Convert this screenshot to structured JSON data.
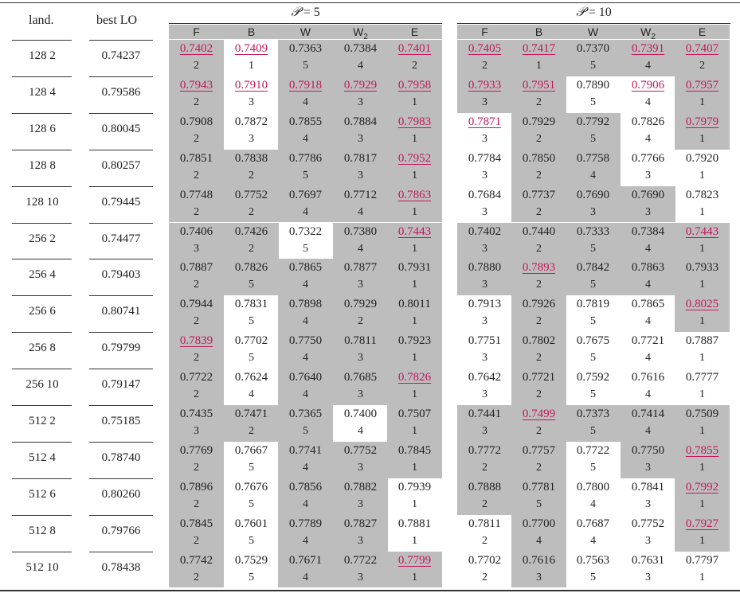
{
  "columns": {
    "landmarks": "land.",
    "best_lo": "best LO",
    "groups": [
      {
        "label_prefix": "𝒫",
        "label_eq": "= 5"
      },
      {
        "label_prefix": "𝒫",
        "label_eq": "= 10"
      }
    ],
    "methods": [
      "F",
      "B",
      "W",
      "W",
      "E"
    ],
    "w2_subscript": "2"
  },
  "rows": [
    {
      "land": "128 2",
      "best": "0.74237",
      "p5": [
        [
          "0.7402",
          "2",
          1,
          1
        ],
        [
          "0.7409",
          "1",
          1,
          0
        ],
        [
          "0.7363",
          "5",
          0,
          1
        ],
        [
          "0.7384",
          "4",
          0,
          1
        ],
        [
          "0.7401",
          "2",
          1,
          1
        ]
      ],
      "p10": [
        [
          "0.7405",
          "2",
          1,
          1
        ],
        [
          "0.7417",
          "1",
          1,
          1
        ],
        [
          "0.7370",
          "5",
          0,
          1
        ],
        [
          "0.7391",
          "4",
          1,
          1
        ],
        [
          "0.7407",
          "2",
          1,
          1
        ]
      ]
    },
    {
      "land": "128 4",
      "best": "0.79586",
      "p5": [
        [
          "0.7943",
          "2",
          1,
          1
        ],
        [
          "0.7910",
          "3",
          1,
          0
        ],
        [
          "0.7918",
          "4",
          1,
          1
        ],
        [
          "0.7929",
          "3",
          1,
          1
        ],
        [
          "0.7958",
          "1",
          1,
          1
        ]
      ],
      "p10": [
        [
          "0.7933",
          "3",
          1,
          1
        ],
        [
          "0.7951",
          "2",
          1,
          1
        ],
        [
          "0.7890",
          "5",
          0,
          0
        ],
        [
          "0.7906",
          "4",
          1,
          0
        ],
        [
          "0.7957",
          "1",
          1,
          1
        ]
      ]
    },
    {
      "land": "128 6",
      "best": "0.80045",
      "p5": [
        [
          "0.7908",
          "2",
          0,
          1
        ],
        [
          "0.7872",
          "3",
          0,
          0
        ],
        [
          "0.7855",
          "4",
          0,
          1
        ],
        [
          "0.7884",
          "3",
          0,
          1
        ],
        [
          "0.7983",
          "1",
          1,
          1
        ]
      ],
      "p10": [
        [
          "0.7871",
          "3",
          1,
          0
        ],
        [
          "0.7929",
          "2",
          0,
          1
        ],
        [
          "0.7792",
          "5",
          0,
          1
        ],
        [
          "0.7826",
          "4",
          0,
          0
        ],
        [
          "0.7979",
          "1",
          1,
          1
        ]
      ]
    },
    {
      "land": "128 8",
      "best": "0.80257",
      "p5": [
        [
          "0.7851",
          "2",
          0,
          1
        ],
        [
          "0.7838",
          "2",
          0,
          1
        ],
        [
          "0.7786",
          "5",
          0,
          1
        ],
        [
          "0.7817",
          "3",
          0,
          1
        ],
        [
          "0.7952",
          "1",
          1,
          1
        ]
      ],
      "p10": [
        [
          "0.7784",
          "3",
          0,
          0
        ],
        [
          "0.7850",
          "2",
          0,
          1
        ],
        [
          "0.7758",
          "4",
          0,
          1
        ],
        [
          "0.7766",
          "3",
          0,
          0
        ],
        [
          "0.7920",
          "1",
          0,
          0
        ]
      ]
    },
    {
      "land": "128 10",
      "best": "0.79445",
      "p5": [
        [
          "0.7748",
          "2",
          0,
          1
        ],
        [
          "0.7752",
          "2",
          0,
          1
        ],
        [
          "0.7697",
          "4",
          0,
          1
        ],
        [
          "0.7712",
          "4",
          0,
          1
        ],
        [
          "0.7863",
          "1",
          1,
          1
        ]
      ],
      "p10": [
        [
          "0.7684",
          "3",
          0,
          0
        ],
        [
          "0.7737",
          "2",
          0,
          1
        ],
        [
          "0.7690",
          "3",
          0,
          1
        ],
        [
          "0.7690",
          "3",
          0,
          1
        ],
        [
          "0.7823",
          "1",
          0,
          0
        ]
      ]
    },
    {
      "land": "256 2",
      "best": "0.74477",
      "p5": [
        [
          "0.7406",
          "3",
          0,
          1
        ],
        [
          "0.7426",
          "2",
          0,
          1
        ],
        [
          "0.7322",
          "5",
          0,
          0
        ],
        [
          "0.7380",
          "4",
          0,
          1
        ],
        [
          "0.7443",
          "1",
          1,
          1
        ]
      ],
      "p10": [
        [
          "0.7402",
          "3",
          0,
          1
        ],
        [
          "0.7440",
          "2",
          0,
          1
        ],
        [
          "0.7333",
          "5",
          0,
          1
        ],
        [
          "0.7384",
          "4",
          0,
          1
        ],
        [
          "0.7443",
          "1",
          1,
          1
        ]
      ]
    },
    {
      "land": "256 4",
      "best": "0.79403",
      "p5": [
        [
          "0.7887",
          "2",
          0,
          1
        ],
        [
          "0.7826",
          "5",
          0,
          1
        ],
        [
          "0.7865",
          "4",
          0,
          1
        ],
        [
          "0.7877",
          "3",
          0,
          1
        ],
        [
          "0.7931",
          "1",
          0,
          1
        ]
      ],
      "p10": [
        [
          "0.7880",
          "3",
          0,
          1
        ],
        [
          "0.7893",
          "2",
          1,
          1
        ],
        [
          "0.7842",
          "5",
          0,
          1
        ],
        [
          "0.7863",
          "4",
          0,
          1
        ],
        [
          "0.7933",
          "1",
          0,
          1
        ]
      ]
    },
    {
      "land": "256 6",
      "best": "0.80741",
      "p5": [
        [
          "0.7944",
          "2",
          0,
          1
        ],
        [
          "0.7831",
          "5",
          0,
          0
        ],
        [
          "0.7898",
          "4",
          0,
          1
        ],
        [
          "0.7929",
          "2",
          0,
          1
        ],
        [
          "0.8011",
          "1",
          0,
          1
        ]
      ],
      "p10": [
        [
          "0.7913",
          "3",
          0,
          0
        ],
        [
          "0.7926",
          "2",
          0,
          1
        ],
        [
          "0.7819",
          "5",
          0,
          0
        ],
        [
          "0.7865",
          "4",
          0,
          0
        ],
        [
          "0.8025",
          "1",
          1,
          1
        ]
      ]
    },
    {
      "land": "256 8",
      "best": "0.79799",
      "p5": [
        [
          "0.7839",
          "2",
          1,
          1
        ],
        [
          "0.7702",
          "5",
          0,
          0
        ],
        [
          "0.7750",
          "4",
          0,
          1
        ],
        [
          "0.7811",
          "3",
          0,
          1
        ],
        [
          "0.7923",
          "1",
          0,
          1
        ]
      ],
      "p10": [
        [
          "0.7751",
          "3",
          0,
          0
        ],
        [
          "0.7802",
          "2",
          0,
          1
        ],
        [
          "0.7675",
          "5",
          0,
          0
        ],
        [
          "0.7721",
          "4",
          0,
          0
        ],
        [
          "0.7887",
          "1",
          0,
          0
        ]
      ]
    },
    {
      "land": "256 10",
      "best": "0.79147",
      "p5": [
        [
          "0.7722",
          "2",
          0,
          1
        ],
        [
          "0.7624",
          "4",
          0,
          0
        ],
        [
          "0.7640",
          "4",
          0,
          1
        ],
        [
          "0.7685",
          "3",
          0,
          1
        ],
        [
          "0.7826",
          "1",
          1,
          1
        ]
      ],
      "p10": [
        [
          "0.7642",
          "3",
          0,
          0
        ],
        [
          "0.7721",
          "2",
          0,
          1
        ],
        [
          "0.7592",
          "5",
          0,
          0
        ],
        [
          "0.7616",
          "4",
          0,
          0
        ],
        [
          "0.7777",
          "1",
          0,
          0
        ]
      ]
    },
    {
      "land": "512 2",
      "best": "0.75185",
      "p5": [
        [
          "0.7435",
          "3",
          0,
          1
        ],
        [
          "0.7471",
          "2",
          0,
          1
        ],
        [
          "0.7365",
          "5",
          0,
          1
        ],
        [
          "0.7400",
          "4",
          0,
          0
        ],
        [
          "0.7507",
          "1",
          0,
          1
        ]
      ],
      "p10": [
        [
          "0.7441",
          "3",
          0,
          1
        ],
        [
          "0.7499",
          "2",
          1,
          1
        ],
        [
          "0.7373",
          "5",
          0,
          1
        ],
        [
          "0.7414",
          "4",
          0,
          1
        ],
        [
          "0.7509",
          "1",
          0,
          1
        ]
      ]
    },
    {
      "land": "512 4",
      "best": "0.78740",
      "p5": [
        [
          "0.7769",
          "2",
          0,
          1
        ],
        [
          "0.7667",
          "5",
          0,
          0
        ],
        [
          "0.7741",
          "4",
          0,
          1
        ],
        [
          "0.7752",
          "3",
          0,
          1
        ],
        [
          "0.7845",
          "1",
          0,
          1
        ]
      ],
      "p10": [
        [
          "0.7772",
          "2",
          0,
          1
        ],
        [
          "0.7757",
          "2",
          0,
          1
        ],
        [
          "0.7722",
          "5",
          0,
          0
        ],
        [
          "0.7750",
          "3",
          0,
          1
        ],
        [
          "0.7855",
          "1",
          1,
          1
        ]
      ]
    },
    {
      "land": "512 6",
      "best": "0.80260",
      "p5": [
        [
          "0.7896",
          "2",
          0,
          1
        ],
        [
          "0.7676",
          "5",
          0,
          0
        ],
        [
          "0.7856",
          "4",
          0,
          1
        ],
        [
          "0.7882",
          "3",
          0,
          1
        ],
        [
          "0.7939",
          "1",
          0,
          0
        ]
      ],
      "p10": [
        [
          "0.7888",
          "2",
          0,
          1
        ],
        [
          "0.7781",
          "5",
          0,
          1
        ],
        [
          "0.7800",
          "4",
          0,
          0
        ],
        [
          "0.7841",
          "3",
          0,
          0
        ],
        [
          "0.7992",
          "1",
          1,
          1
        ]
      ]
    },
    {
      "land": "512 8",
      "best": "0.79766",
      "p5": [
        [
          "0.7845",
          "2",
          0,
          1
        ],
        [
          "0.7601",
          "5",
          0,
          0
        ],
        [
          "0.7789",
          "4",
          0,
          1
        ],
        [
          "0.7827",
          "3",
          0,
          1
        ],
        [
          "0.7881",
          "1",
          0,
          0
        ]
      ],
      "p10": [
        [
          "0.7811",
          "2",
          0,
          0
        ],
        [
          "0.7700",
          "4",
          0,
          1
        ],
        [
          "0.7687",
          "4",
          0,
          0
        ],
        [
          "0.7752",
          "3",
          0,
          0
        ],
        [
          "0.7927",
          "1",
          1,
          1
        ]
      ]
    },
    {
      "land": "512 10",
      "best": "0.78438",
      "p5": [
        [
          "0.7742",
          "2",
          0,
          1
        ],
        [
          "0.7529",
          "5",
          0,
          0
        ],
        [
          "0.7671",
          "4",
          0,
          1
        ],
        [
          "0.7722",
          "3",
          0,
          1
        ],
        [
          "0.7799",
          "1",
          1,
          1
        ]
      ],
      "p10": [
        [
          "0.7702",
          "2",
          0,
          0
        ],
        [
          "0.7616",
          "3",
          0,
          1
        ],
        [
          "0.7563",
          "5",
          0,
          0
        ],
        [
          "0.7631",
          "3",
          0,
          0
        ],
        [
          "0.7797",
          "1",
          0,
          0
        ]
      ]
    }
  ]
}
